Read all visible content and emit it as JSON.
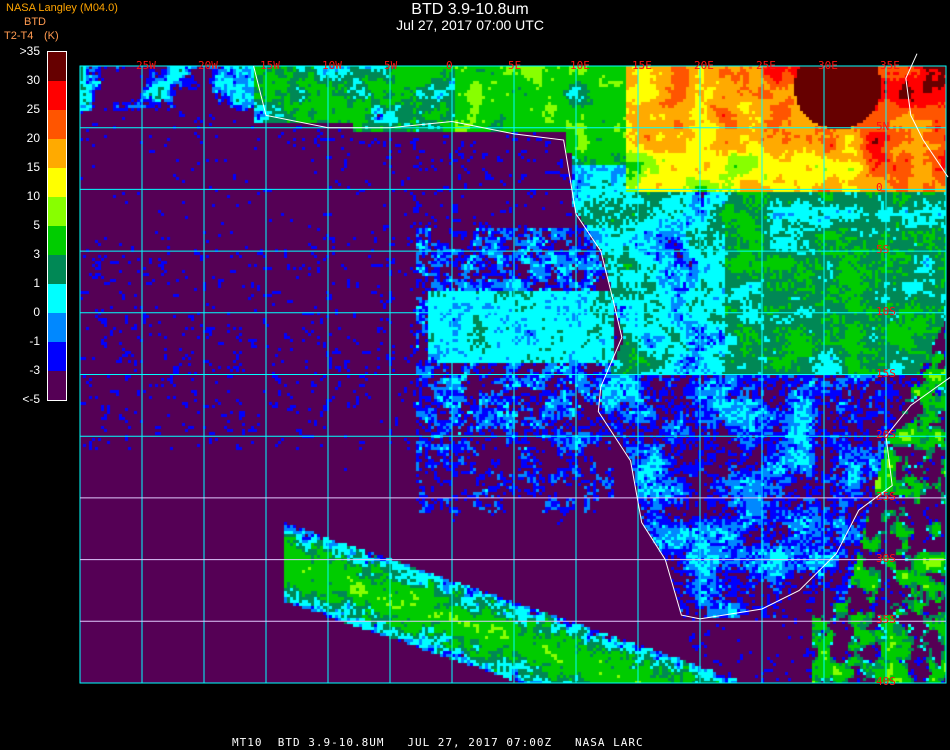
{
  "header": {
    "title": "BTD 3.9-10.8um",
    "subtitle": "Jul 27, 2017 07:00 UTC",
    "producer": "NASA Langley (M04.0)",
    "legend_title": "BTD",
    "legend_unit_a": "T2-T4",
    "legend_unit_b": "(K)"
  },
  "legend": {
    "labels": [
      ">35",
      "30",
      "25",
      "20",
      "15",
      "10",
      "5",
      "3",
      "1",
      "0",
      "-1",
      "-3",
      "<-5"
    ],
    "colors": [
      "#660000",
      "#ff0000",
      "#ff5500",
      "#ffaa00",
      "#ffff00",
      "#88ff00",
      "#00cc00",
      "#008855",
      "#00ffff",
      "#0088ff",
      "#0000ff",
      "#550055"
    ]
  },
  "map": {
    "lon_labels": [
      "25W",
      "20W",
      "15W",
      "10W",
      "5W",
      "0",
      "5E",
      "10E",
      "15E",
      "20E",
      "25E",
      "30E",
      "35E"
    ],
    "lat_labels": [
      "5N",
      "0",
      "5S",
      "10S",
      "15S",
      "20S",
      "25S",
      "30S",
      "35S",
      "40S"
    ],
    "grid_color": "#00ffff",
    "label_color": "#ff1010",
    "coast_color": "#ffffff"
  },
  "caption": "MT10  BTD 3.9-10.8UM   JUL 27, 2017 07:00Z   NASA LARC"
}
